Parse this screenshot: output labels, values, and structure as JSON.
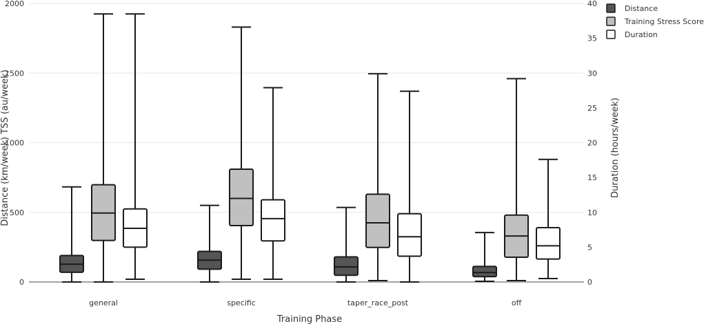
{
  "chart_data": {
    "type": "box",
    "xlabel": "Training Phase",
    "ylabel_left": "Distance (km/week)  TSS (au/week)",
    "ylabel_right": "Duration (hours/week)",
    "ylim_left": [
      0,
      2000
    ],
    "ylim_right": [
      0,
      40
    ],
    "yticks_left": [
      "0",
      "500",
      "1000",
      "1500",
      "2000"
    ],
    "yticks_right": [
      "0",
      "5",
      "10",
      "15",
      "20",
      "25",
      "30",
      "35",
      "40"
    ],
    "grid": true,
    "legend_position": "top-right",
    "categories": [
      "general",
      "specific",
      "taper_race_post",
      "off"
    ],
    "series": [
      {
        "name": "Distance",
        "axis": "left",
        "color": "#555555",
        "boxes": [
          {
            "min": 0,
            "q1": 70,
            "median": 128,
            "q3": 190,
            "max": 683
          },
          {
            "min": 0,
            "q1": 92,
            "median": 157,
            "q3": 220,
            "max": 550
          },
          {
            "min": 0,
            "q1": 48,
            "median": 108,
            "q3": 180,
            "max": 535
          },
          {
            "min": 5,
            "q1": 38,
            "median": 68,
            "q3": 112,
            "max": 355
          }
        ]
      },
      {
        "name": "Training Stress Score",
        "axis": "left",
        "color": "#c0c0c0",
        "boxes": [
          {
            "min": 0,
            "q1": 298,
            "median": 495,
            "q3": 698,
            "max": 1925
          },
          {
            "min": 20,
            "q1": 405,
            "median": 600,
            "q3": 810,
            "max": 1830
          },
          {
            "min": 10,
            "q1": 248,
            "median": 425,
            "q3": 630,
            "max": 1495
          },
          {
            "min": 10,
            "q1": 178,
            "median": 330,
            "q3": 480,
            "max": 1460
          }
        ]
      },
      {
        "name": "Duration",
        "axis": "right",
        "color": "#ffffff",
        "boxes": [
          {
            "min": 0.4,
            "q1": 5.0,
            "median": 7.7,
            "q3": 10.5,
            "max": 38.5
          },
          {
            "min": 0.4,
            "q1": 5.9,
            "median": 9.1,
            "q3": 11.8,
            "max": 27.9
          },
          {
            "min": 0,
            "q1": 3.7,
            "median": 6.5,
            "q3": 9.8,
            "max": 27.4
          },
          {
            "min": 0.5,
            "q1": 3.3,
            "median": 5.2,
            "q3": 7.8,
            "max": 17.6
          }
        ]
      }
    ]
  }
}
